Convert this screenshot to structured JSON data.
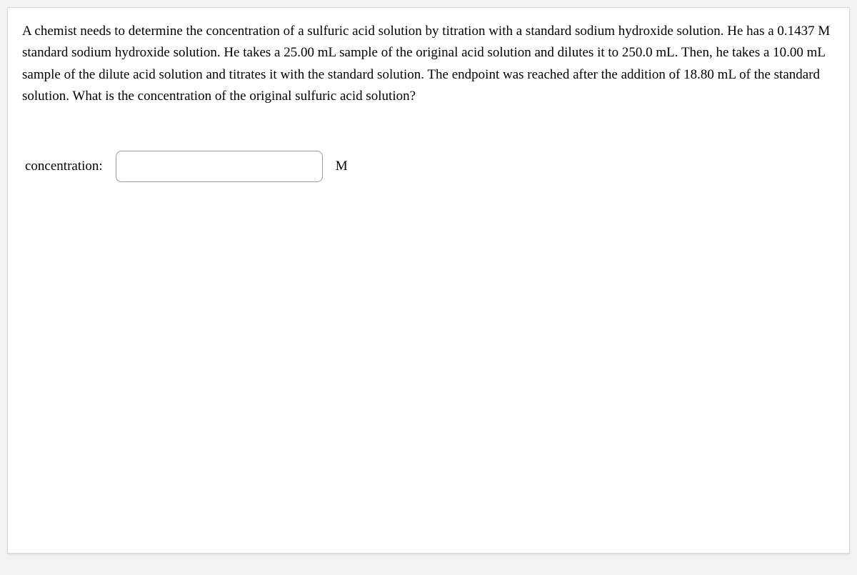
{
  "question": {
    "text": "A chemist needs to determine the concentration of a sulfuric acid solution by titration with a standard sodium hydroxide solution. He has a 0.1437 M standard sodium hydroxide solution. He takes a 25.00 mL sample of the original acid solution and dilutes it to 250.0 mL. Then, he takes a 10.00 mL sample of the dilute acid solution and titrates it with the standard solution. The endpoint was reached after the addition of 18.80 mL of the standard solution. What is the concentration of the original sulfuric acid solution?"
  },
  "answer": {
    "label": "concentration:",
    "value": "",
    "unit": "M"
  },
  "styling": {
    "page_background": "#f3f3f3",
    "card_background": "#ffffff",
    "card_border": "#d8d8d8",
    "text_color": "#000000",
    "input_border": "#9a9a9a",
    "input_border_radius": 8,
    "font_family": "Georgia, Times New Roman, serif",
    "body_fontsize": 19,
    "line_height": 1.6
  }
}
